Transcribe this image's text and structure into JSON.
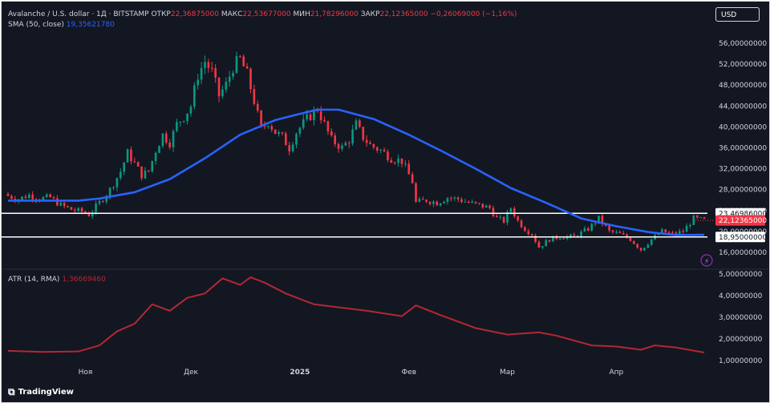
{
  "header": {
    "line1": {
      "symbol": "Avalanche / U.S. dollar · 1Д · BITSTAMP",
      "o_label": "ОТКР",
      "o_value": "22,36875000",
      "h_label": "МАКС",
      "h_value": "22,53677000",
      "l_label": "МИН",
      "l_value": "21,78296000",
      "c_label": "ЗАКР",
      "c_value": "22,12365000",
      "change": "−0,26069000 (−1,16%)"
    },
    "sma_label": "SMA (50, close)",
    "sma_value": "19,35621780",
    "atr_label": "ATR (14, RMA)",
    "atr_value": "1,36669460"
  },
  "currency_button": "USD",
  "brand": "TradingView",
  "price_tags": {
    "upper": "23,46986000",
    "last": "22,12365000",
    "lower": "18,95000000"
  },
  "colors": {
    "background": "#131722",
    "up": "#089981",
    "down": "#f23645",
    "sma": "#2962ff",
    "atr": "#b22833",
    "hline": "#ffffff"
  },
  "chart_data": [
    {
      "type": "candlestick",
      "title": "Avalanche / U.S. dollar · 1Д · BITSTAMP",
      "x_ticks": [
        "Ноя",
        "Дек",
        "2025",
        "Фев",
        "Мар",
        "Апр"
      ],
      "y_ticks": [
        "16,00000000",
        "20,00000000",
        "24,00000000",
        "28,00000000",
        "32,00000000",
        "36,00000000",
        "40,00000000",
        "44,00000000",
        "48,00000000",
        "52,00000000",
        "56,00000000"
      ],
      "ylim": [
        14.5,
        57.5
      ],
      "close_path": [
        [
          "2024-10-10",
          26.8
        ],
        [
          "2024-10-13",
          26.2
        ],
        [
          "2024-10-16",
          27.0
        ],
        [
          "2024-10-19",
          26.3
        ],
        [
          "2024-10-22",
          26.5
        ],
        [
          "2024-10-25",
          25.0
        ],
        [
          "2024-10-28",
          24.2
        ],
        [
          "2024-10-31",
          23.8
        ],
        [
          "2024-11-02",
          23.2
        ],
        [
          "2024-11-05",
          25.5
        ],
        [
          "2024-11-08",
          28.0
        ],
        [
          "2024-11-11",
          31.5
        ],
        [
          "2024-11-13",
          35.0
        ],
        [
          "2024-11-15",
          33.0
        ],
        [
          "2024-11-17",
          30.8
        ],
        [
          "2024-11-19",
          31.5
        ],
        [
          "2024-11-21",
          35.5
        ],
        [
          "2024-11-23",
          38.5
        ],
        [
          "2024-11-25",
          37.0
        ],
        [
          "2024-11-27",
          40.5
        ],
        [
          "2024-11-29",
          42.0
        ],
        [
          "2024-12-01",
          44.0
        ],
        [
          "2024-12-03",
          50.0
        ],
        [
          "2024-12-05",
          52.5
        ],
        [
          "2024-12-07",
          50.5
        ],
        [
          "2024-12-09",
          46.0
        ],
        [
          "2024-12-11",
          48.0
        ],
        [
          "2024-12-13",
          51.5
        ],
        [
          "2024-12-15",
          53.0
        ],
        [
          "2024-12-17",
          50.0
        ],
        [
          "2024-12-19",
          45.0
        ],
        [
          "2024-12-21",
          39.5
        ],
        [
          "2024-12-23",
          41.0
        ],
        [
          "2024-12-25",
          39.0
        ],
        [
          "2024-12-27",
          38.0
        ],
        [
          "2024-12-29",
          36.0
        ],
        [
          "2024-12-31",
          39.0
        ],
        [
          "2025-01-03",
          41.5
        ],
        [
          "2025-01-06",
          43.5
        ],
        [
          "2025-01-08",
          40.5
        ],
        [
          "2025-01-10",
          37.5
        ],
        [
          "2025-01-13",
          36.0
        ],
        [
          "2025-01-15",
          37.5
        ],
        [
          "2025-01-17",
          40.5
        ],
        [
          "2025-01-19",
          38.0
        ],
        [
          "2025-01-21",
          36.5
        ],
        [
          "2025-01-24",
          35.5
        ],
        [
          "2025-01-27",
          34.0
        ],
        [
          "2025-01-30",
          33.5
        ],
        [
          "2025-02-02",
          29.5
        ],
        [
          "2025-02-03",
          25.5
        ],
        [
          "2025-02-06",
          26.0
        ],
        [
          "2025-02-09",
          25.5
        ],
        [
          "2025-02-12",
          26.5
        ],
        [
          "2025-02-15",
          26.2
        ],
        [
          "2025-02-18",
          25.5
        ],
        [
          "2025-02-21",
          25.0
        ],
        [
          "2025-02-24",
          24.5
        ],
        [
          "2025-02-26",
          22.5
        ],
        [
          "2025-02-28",
          22.0
        ],
        [
          "2025-03-02",
          24.5
        ],
        [
          "2025-03-04",
          22.0
        ],
        [
          "2025-03-06",
          20.5
        ],
        [
          "2025-03-08",
          19.5
        ],
        [
          "2025-03-10",
          17.0
        ],
        [
          "2025-03-13",
          18.5
        ],
        [
          "2025-03-16",
          19.0
        ],
        [
          "2025-03-20",
          19.0
        ],
        [
          "2025-03-24",
          20.5
        ],
        [
          "2025-03-27",
          22.5
        ],
        [
          "2025-03-30",
          20.0
        ],
        [
          "2025-04-02",
          19.5
        ],
        [
          "2025-04-05",
          18.5
        ],
        [
          "2025-04-08",
          16.5
        ],
        [
          "2025-04-11",
          18.5
        ],
        [
          "2025-04-14",
          20.0
        ],
        [
          "2025-04-17",
          19.5
        ],
        [
          "2025-04-20",
          20.0
        ],
        [
          "2025-04-23",
          22.5
        ],
        [
          "2025-04-26",
          22.12
        ]
      ],
      "series": [
        {
          "name": "SMA (50, close)",
          "points": [
            [
              "2024-10-10",
              25.9
            ],
            [
              "2024-10-20",
              25.9
            ],
            [
              "2024-10-30",
              25.9
            ],
            [
              "2024-11-05",
              26.3
            ],
            [
              "2024-11-15",
              27.5
            ],
            [
              "2024-11-25",
              30.0
            ],
            [
              "2024-12-05",
              34.0
            ],
            [
              "2024-12-15",
              38.5
            ],
            [
              "2024-12-25",
              41.3
            ],
            [
              "2025-01-01",
              42.5
            ],
            [
              "2025-01-06",
              43.3
            ],
            [
              "2025-01-12",
              43.3
            ],
            [
              "2025-01-22",
              41.5
            ],
            [
              "2025-02-01",
              38.5
            ],
            [
              "2025-02-10",
              35.5
            ],
            [
              "2025-02-20",
              32.0
            ],
            [
              "2025-03-02",
              28.3
            ],
            [
              "2025-03-12",
              25.5
            ],
            [
              "2025-03-22",
              22.5
            ],
            [
              "2025-04-01",
              21.0
            ],
            [
              "2025-04-10",
              19.9
            ],
            [
              "2025-04-18",
              19.3
            ],
            [
              "2025-04-26",
              19.36
            ]
          ]
        },
        {
          "name": "ATR (14, RMA)",
          "points": [
            [
              "2024-10-10",
              1.45
            ],
            [
              "2024-10-20",
              1.4
            ],
            [
              "2024-10-30",
              1.42
            ],
            [
              "2024-11-05",
              1.7
            ],
            [
              "2024-11-10",
              2.35
            ],
            [
              "2024-11-15",
              2.7
            ],
            [
              "2024-11-20",
              3.6
            ],
            [
              "2024-11-25",
              3.3
            ],
            [
              "2024-11-30",
              3.9
            ],
            [
              "2024-12-05",
              4.1
            ],
            [
              "2024-12-10",
              4.8
            ],
            [
              "2024-12-15",
              4.5
            ],
            [
              "2024-12-18",
              4.85
            ],
            [
              "2024-12-22",
              4.6
            ],
            [
              "2024-12-28",
              4.1
            ],
            [
              "2025-01-05",
              3.6
            ],
            [
              "2025-01-10",
              3.5
            ],
            [
              "2025-01-20",
              3.3
            ],
            [
              "2025-01-30",
              3.05
            ],
            [
              "2025-02-03",
              3.55
            ],
            [
              "2025-02-10",
              3.1
            ],
            [
              "2025-02-20",
              2.5
            ],
            [
              "2025-03-01",
              2.2
            ],
            [
              "2025-03-10",
              2.3
            ],
            [
              "2025-03-15",
              2.15
            ],
            [
              "2025-03-25",
              1.7
            ],
            [
              "2025-04-01",
              1.65
            ],
            [
              "2025-04-08",
              1.5
            ],
            [
              "2025-04-12",
              1.7
            ],
            [
              "2025-04-18",
              1.6
            ],
            [
              "2025-04-26",
              1.37
            ]
          ]
        }
      ],
      "atr_y_ticks": [
        "1,00000000",
        "2,00000000",
        "3,00000000",
        "4,00000000",
        "5,00000000"
      ],
      "atr_ylim": [
        0.85,
        5.5
      ],
      "horizontal_lines": [
        23.47,
        18.95
      ]
    }
  ]
}
